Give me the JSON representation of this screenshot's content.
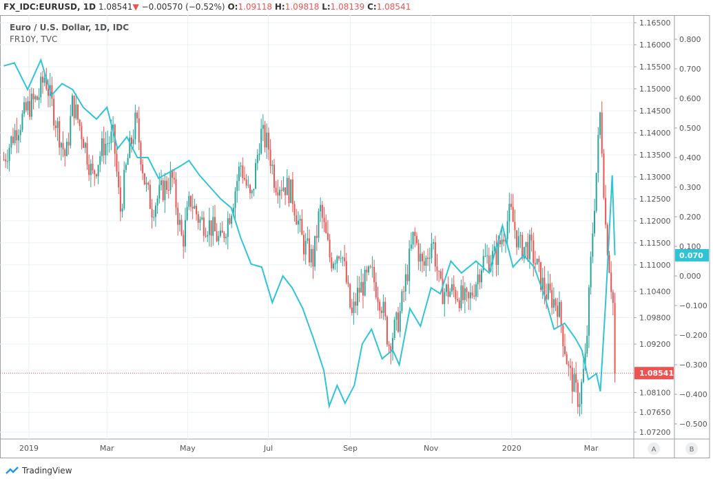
{
  "header": {
    "symbol": "FX_IDC:EURUSD, 1D",
    "last": "1.08541",
    "change": "−0.00570 (−0.52%)",
    "o_label": "O:",
    "o": "1.09118",
    "h_label": "H:",
    "h": "1.09818",
    "l_label": "L:",
    "l": "1.08139",
    "c_label": "C:",
    "c": "1.08541"
  },
  "legend": {
    "title": "Euro / U.S. Dollar, 1D, IDC",
    "overlay": "FR10Y, TVC"
  },
  "branding": "TradingView",
  "colors": {
    "up": "#26a69a",
    "down": "#ef5350",
    "overlay": "#2ec4d6",
    "grid": "#e8f0f5"
  },
  "chart_data": {
    "type": "candlestick+line",
    "x_unit": "days since 2019-01-01",
    "xticks": [
      {
        "label": "2019",
        "day": 0
      },
      {
        "label": "Mar",
        "day": 59
      },
      {
        "label": "May",
        "day": 120
      },
      {
        "label": "Jul",
        "day": 181
      },
      {
        "label": "Sep",
        "day": 243
      },
      {
        "label": "Nov",
        "day": 304
      },
      {
        "label": "2020",
        "day": 365
      },
      {
        "label": "Mar",
        "day": 425
      }
    ],
    "price_axis": {
      "name": "A",
      "ylim": [
        1.0705,
        1.1665
      ],
      "ticks": [
        "1.16500",
        "1.16000",
        "1.15500",
        "1.15000",
        "1.14500",
        "1.14000",
        "1.13500",
        "1.13000",
        "1.12500",
        "1.12000",
        "1.11500",
        "1.11000",
        "1.10400",
        "1.09800",
        "1.09200",
        "1.08100",
        "1.07650",
        "1.07200"
      ],
      "last_label": "1.08541",
      "last": 1.08541
    },
    "overlay_axis": {
      "name": "B",
      "ylim": [
        -0.55,
        0.85
      ],
      "ticks": [
        "0.800",
        "0.700",
        "0.600",
        "0.500",
        "0.400",
        "0.300",
        "0.200",
        "0.100",
        "0.000",
        "−0.100",
        "−0.200",
        "−0.300",
        "−0.400",
        "−0.500"
      ],
      "last_label": "0.070",
      "last": 0.07
    },
    "eurusd_close": [
      [
        -19,
        1.134
      ],
      [
        -11,
        1.14
      ],
      [
        0,
        1.146
      ],
      [
        7,
        1.148
      ],
      [
        12,
        1.153
      ],
      [
        20,
        1.143
      ],
      [
        28,
        1.134
      ],
      [
        33,
        1.147
      ],
      [
        41,
        1.139
      ],
      [
        48,
        1.13
      ],
      [
        56,
        1.137
      ],
      [
        64,
        1.139
      ],
      [
        69,
        1.122
      ],
      [
        74,
        1.133
      ],
      [
        81,
        1.143
      ],
      [
        88,
        1.128
      ],
      [
        93,
        1.123
      ],
      [
        101,
        1.127
      ],
      [
        108,
        1.13
      ],
      [
        116,
        1.115
      ],
      [
        122,
        1.125
      ],
      [
        129,
        1.12
      ],
      [
        137,
        1.119
      ],
      [
        145,
        1.115
      ],
      [
        153,
        1.123
      ],
      [
        160,
        1.133
      ],
      [
        168,
        1.124
      ],
      [
        175,
        1.14
      ],
      [
        181,
        1.137
      ],
      [
        186,
        1.129
      ],
      [
        194,
        1.128
      ],
      [
        199,
        1.126
      ],
      [
        207,
        1.115
      ],
      [
        215,
        1.111
      ],
      [
        220,
        1.123
      ],
      [
        228,
        1.111
      ],
      [
        236,
        1.114
      ],
      [
        244,
        1.098
      ],
      [
        249,
        1.104
      ],
      [
        259,
        1.108
      ],
      [
        267,
        1.101
      ],
      [
        272,
        1.092
      ],
      [
        280,
        1.098
      ],
      [
        291,
        1.117
      ],
      [
        298,
        1.109
      ],
      [
        305,
        1.116
      ],
      [
        311,
        1.104
      ],
      [
        322,
        1.104
      ],
      [
        332,
        1.101
      ],
      [
        343,
        1.111
      ],
      [
        353,
        1.112
      ],
      [
        364,
        1.122
      ],
      [
        371,
        1.114
      ],
      [
        379,
        1.114
      ],
      [
        390,
        1.104
      ],
      [
        400,
        1.101
      ],
      [
        408,
        1.086
      ],
      [
        416,
        1.079
      ],
      [
        421,
        1.089
      ],
      [
        426,
        1.117
      ],
      [
        432,
        1.145
      ],
      [
        436,
        1.119
      ],
      [
        442,
        1.1
      ],
      [
        443,
        1.08541
      ]
    ],
    "fr10y": [
      [
        -19,
        0.71
      ],
      [
        -11,
        0.72
      ],
      [
        -1,
        0.63
      ],
      [
        9,
        0.73
      ],
      [
        17,
        0.61
      ],
      [
        25,
        0.65
      ],
      [
        33,
        0.63
      ],
      [
        41,
        0.57
      ],
      [
        51,
        0.53
      ],
      [
        59,
        0.57
      ],
      [
        67,
        0.43
      ],
      [
        74,
        0.47
      ],
      [
        82,
        0.4
      ],
      [
        90,
        0.4
      ],
      [
        98,
        0.33
      ],
      [
        106,
        0.35
      ],
      [
        114,
        0.37
      ],
      [
        121,
        0.39
      ],
      [
        129,
        0.34
      ],
      [
        137,
        0.3
      ],
      [
        145,
        0.26
      ],
      [
        153,
        0.23
      ],
      [
        160,
        0.13
      ],
      [
        168,
        0.04
      ],
      [
        176,
        0.03
      ],
      [
        184,
        -0.09
      ],
      [
        192,
        0.0
      ],
      [
        199,
        -0.04
      ],
      [
        207,
        -0.11
      ],
      [
        215,
        -0.21
      ],
      [
        223,
        -0.32
      ],
      [
        227,
        -0.44
      ],
      [
        233,
        -0.37
      ],
      [
        239,
        -0.43
      ],
      [
        246,
        -0.37
      ],
      [
        252,
        -0.23
      ],
      [
        259,
        -0.18
      ],
      [
        267,
        -0.28
      ],
      [
        275,
        -0.25
      ],
      [
        280,
        -0.3
      ],
      [
        288,
        -0.11
      ],
      [
        296,
        -0.17
      ],
      [
        304,
        -0.04
      ],
      [
        311,
        -0.06
      ],
      [
        319,
        0.05
      ],
      [
        327,
        0.01
      ],
      [
        338,
        0.05
      ],
      [
        348,
        0.01
      ],
      [
        358,
        0.17
      ],
      [
        366,
        0.03
      ],
      [
        374,
        0.07
      ],
      [
        382,
        0.03
      ],
      [
        390,
        -0.07
      ],
      [
        397,
        -0.18
      ],
      [
        405,
        -0.16
      ],
      [
        413,
        -0.21
      ],
      [
        418,
        -0.25
      ],
      [
        423,
        -0.35
      ],
      [
        429,
        -0.33
      ],
      [
        432,
        -0.39
      ],
      [
        436,
        -0.09
      ],
      [
        441,
        0.34
      ],
      [
        443,
        0.07
      ]
    ],
    "bottom_buttons": [
      "A",
      "B"
    ]
  }
}
